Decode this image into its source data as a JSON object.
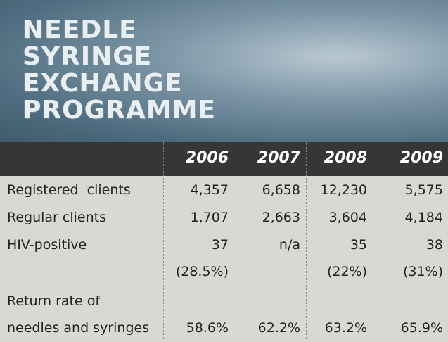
{
  "header": {
    "title": [
      "NEEDLE",
      "SYRINGE",
      "EXCHANGE",
      "PROGRAMME"
    ]
  },
  "table": {
    "columns": [
      "2006",
      "2007",
      "2008",
      "2009"
    ],
    "rows": [
      {
        "label": [
          "Registered  clients"
        ],
        "cells": [
          [
            "4,357"
          ],
          [
            "6,658"
          ],
          [
            "12,230"
          ],
          [
            "5,575"
          ]
        ]
      },
      {
        "label": [
          "Regular clients"
        ],
        "cells": [
          [
            "1,707"
          ],
          [
            "2,663"
          ],
          [
            "3,604"
          ],
          [
            "4,184"
          ]
        ]
      },
      {
        "label": [
          "HIV-positive"
        ],
        "cells": [
          [
            "37",
            "(28.5%)"
          ],
          [
            "n/a"
          ],
          [
            "35",
            "(22%)"
          ],
          [
            "38",
            "(31%)"
          ]
        ]
      },
      {
        "label": [
          "Return rate of",
          "needles and syringes"
        ],
        "cells": [
          [
            "58.6%"
          ],
          [
            "62.2%"
          ],
          [
            "63.2%"
          ],
          [
            "65.9%"
          ]
        ]
      }
    ]
  }
}
